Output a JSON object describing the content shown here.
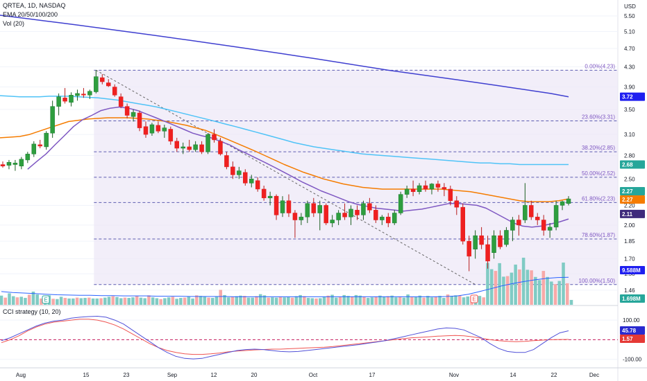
{
  "header": {
    "symbol_line": "QRTEA, 1D, NASDAQ",
    "ema_line": "EMA 20/50/100/200",
    "vol_line": "Vol (20)",
    "cci_line": "CCI strategy (10, 20)"
  },
  "axis": {
    "currency": "USD",
    "price_ticks": [
      "5.50",
      "5.10",
      "4.70",
      "4.30",
      "3.90",
      "3.50",
      "3.10",
      "2.80",
      "2.50",
      "2.20",
      "2.00",
      "1.85",
      "1.70",
      "1.58",
      "1.46"
    ],
    "cci_ticks": [
      "100.00",
      "-100.00"
    ],
    "x_labels": [
      "Aug",
      "15",
      "23",
      "Sep",
      "12",
      "20",
      "Oct",
      "17",
      "Nov",
      "14",
      "22",
      "Dec"
    ]
  },
  "badges": {
    "ema200": {
      "text": "3.72",
      "color": "#1e1ef0"
    },
    "ema100": {
      "text": "2.68",
      "color": "#26a69a"
    },
    "price_green": {
      "text": "2.27",
      "color": "#26a69a"
    },
    "ema50": {
      "text": "2.27",
      "color": "#f57c00"
    },
    "ema20": {
      "text": "2.11",
      "color": "#3f2a7c"
    },
    "vol_ma": {
      "text": "9.588M",
      "color": "#1e1ef0"
    },
    "vol": {
      "text": "1.698M",
      "color": "#26a69a"
    },
    "cci": {
      "text": "45.78",
      "color": "#2a2ad0"
    },
    "cci_sig": {
      "text": "1.57",
      "color": "#e53935"
    }
  },
  "chart_data": {
    "type": "candlestick",
    "colors": {
      "up": "#26a69a",
      "down": "#ef5350",
      "ema20": "#7e57c2",
      "ema50": "#f57c00",
      "ema100": "#4fc3f7",
      "ema200": "#3f3fd0",
      "fib": "#5b5bb0",
      "fib_fill": "#ede7f6"
    },
    "fib_levels": [
      {
        "label": "0.00%(4.23)",
        "value": 4.23
      },
      {
        "label": "23.60%(3.31)",
        "value": 3.31
      },
      {
        "label": "38.20%(2.85)",
        "value": 2.85
      },
      {
        "label": "50.00%(2.52)",
        "value": 2.52
      },
      {
        "label": "61.80%(2.23)",
        "value": 2.23
      },
      {
        "label": "78.60%(1.87)",
        "value": 1.87
      },
      {
        "label": "100.00%(1.50)",
        "value": 1.5
      }
    ],
    "candles": [
      {
        "o": 2.68,
        "h": 2.72,
        "l": 2.64,
        "c": 2.66
      },
      {
        "o": 2.67,
        "h": 2.74,
        "l": 2.62,
        "c": 2.71
      },
      {
        "o": 2.68,
        "h": 2.74,
        "l": 2.6,
        "c": 2.7
      },
      {
        "o": 2.66,
        "h": 2.78,
        "l": 2.62,
        "c": 2.75
      },
      {
        "o": 2.74,
        "h": 2.85,
        "l": 2.7,
        "c": 2.82
      },
      {
        "o": 2.82,
        "h": 3.0,
        "l": 2.78,
        "c": 2.96
      },
      {
        "o": 2.95,
        "h": 3.02,
        "l": 2.9,
        "c": 2.93
      },
      {
        "o": 2.92,
        "h": 3.15,
        "l": 2.88,
        "c": 3.12
      },
      {
        "o": 3.12,
        "h": 3.65,
        "l": 3.05,
        "c": 3.55
      },
      {
        "o": 3.55,
        "h": 3.78,
        "l": 3.4,
        "c": 3.72
      },
      {
        "o": 3.7,
        "h": 3.88,
        "l": 3.6,
        "c": 3.64
      },
      {
        "o": 3.62,
        "h": 3.8,
        "l": 3.55,
        "c": 3.75
      },
      {
        "o": 3.74,
        "h": 3.85,
        "l": 3.65,
        "c": 3.78
      },
      {
        "o": 3.77,
        "h": 3.88,
        "l": 3.7,
        "c": 3.75
      },
      {
        "o": 3.75,
        "h": 3.85,
        "l": 3.68,
        "c": 3.82
      },
      {
        "o": 3.81,
        "h": 4.23,
        "l": 3.78,
        "c": 4.1
      },
      {
        "o": 4.08,
        "h": 4.15,
        "l": 3.95,
        "c": 4.0
      },
      {
        "o": 3.98,
        "h": 4.05,
        "l": 3.9,
        "c": 3.92
      },
      {
        "o": 3.9,
        "h": 3.95,
        "l": 3.72,
        "c": 3.75
      },
      {
        "o": 3.72,
        "h": 3.78,
        "l": 3.52,
        "c": 3.55
      },
      {
        "o": 3.55,
        "h": 3.6,
        "l": 3.35,
        "c": 3.4
      },
      {
        "o": 3.38,
        "h": 3.5,
        "l": 3.3,
        "c": 3.45
      },
      {
        "o": 3.44,
        "h": 3.48,
        "l": 3.15,
        "c": 3.2
      },
      {
        "o": 3.22,
        "h": 3.3,
        "l": 3.05,
        "c": 3.1
      },
      {
        "o": 3.12,
        "h": 3.28,
        "l": 3.08,
        "c": 3.25
      },
      {
        "o": 3.24,
        "h": 3.3,
        "l": 3.12,
        "c": 3.15
      },
      {
        "o": 3.15,
        "h": 3.25,
        "l": 3.05,
        "c": 3.2
      },
      {
        "o": 3.18,
        "h": 3.22,
        "l": 2.95,
        "c": 3.0
      },
      {
        "o": 3.0,
        "h": 3.05,
        "l": 2.85,
        "c": 2.9
      },
      {
        "o": 2.9,
        "h": 2.98,
        "l": 2.82,
        "c": 2.92
      },
      {
        "o": 2.92,
        "h": 3.02,
        "l": 2.85,
        "c": 2.88
      },
      {
        "o": 2.88,
        "h": 3.0,
        "l": 2.85,
        "c": 2.95
      },
      {
        "o": 2.95,
        "h": 3.0,
        "l": 2.82,
        "c": 2.85
      },
      {
        "o": 2.85,
        "h": 3.12,
        "l": 2.82,
        "c": 3.1
      },
      {
        "o": 3.1,
        "h": 3.18,
        "l": 2.98,
        "c": 3.02
      },
      {
        "o": 3.0,
        "h": 3.05,
        "l": 2.8,
        "c": 2.82
      },
      {
        "o": 2.8,
        "h": 2.85,
        "l": 2.62,
        "c": 2.65
      },
      {
        "o": 2.65,
        "h": 2.72,
        "l": 2.5,
        "c": 2.55
      },
      {
        "o": 2.55,
        "h": 2.65,
        "l": 2.5,
        "c": 2.6
      },
      {
        "o": 2.58,
        "h": 2.62,
        "l": 2.42,
        "c": 2.45
      },
      {
        "o": 2.45,
        "h": 2.55,
        "l": 2.4,
        "c": 2.5
      },
      {
        "o": 2.48,
        "h": 2.52,
        "l": 2.35,
        "c": 2.38
      },
      {
        "o": 2.38,
        "h": 2.42,
        "l": 2.25,
        "c": 2.28
      },
      {
        "o": 2.28,
        "h": 2.35,
        "l": 2.2,
        "c": 2.3
      },
      {
        "o": 2.3,
        "h": 2.32,
        "l": 2.05,
        "c": 2.1
      },
      {
        "o": 2.12,
        "h": 2.3,
        "l": 2.08,
        "c": 2.25
      },
      {
        "o": 2.25,
        "h": 2.32,
        "l": 2.08,
        "c": 2.12
      },
      {
        "o": 2.12,
        "h": 2.15,
        "l": 1.88,
        "c": 2.05
      },
      {
        "o": 2.05,
        "h": 2.12,
        "l": 2.0,
        "c": 2.08
      },
      {
        "o": 2.08,
        "h": 2.25,
        "l": 2.02,
        "c": 2.22
      },
      {
        "o": 2.22,
        "h": 2.28,
        "l": 2.08,
        "c": 2.12
      },
      {
        "o": 2.12,
        "h": 2.25,
        "l": 1.95,
        "c": 2.2
      },
      {
        "o": 2.2,
        "h": 2.22,
        "l": 2.0,
        "c": 2.02
      },
      {
        "o": 2.02,
        "h": 2.1,
        "l": 1.98,
        "c": 2.05
      },
      {
        "o": 2.05,
        "h": 2.15,
        "l": 2.0,
        "c": 2.12
      },
      {
        "o": 2.12,
        "h": 2.22,
        "l": 2.05,
        "c": 2.08
      },
      {
        "o": 2.08,
        "h": 2.2,
        "l": 2.0,
        "c": 2.16
      },
      {
        "o": 2.15,
        "h": 2.2,
        "l": 2.05,
        "c": 2.1
      },
      {
        "o": 2.1,
        "h": 2.25,
        "l": 2.05,
        "c": 2.22
      },
      {
        "o": 2.22,
        "h": 2.28,
        "l": 2.12,
        "c": 2.15
      },
      {
        "o": 2.15,
        "h": 2.2,
        "l": 2.02,
        "c": 2.05
      },
      {
        "o": 2.05,
        "h": 2.1,
        "l": 2.0,
        "c": 2.08
      },
      {
        "o": 2.08,
        "h": 2.12,
        "l": 1.98,
        "c": 2.02
      },
      {
        "o": 2.02,
        "h": 2.15,
        "l": 2.0,
        "c": 2.12
      },
      {
        "o": 2.12,
        "h": 2.35,
        "l": 2.1,
        "c": 2.32
      },
      {
        "o": 2.32,
        "h": 2.42,
        "l": 2.28,
        "c": 2.38
      },
      {
        "o": 2.38,
        "h": 2.48,
        "l": 2.3,
        "c": 2.35
      },
      {
        "o": 2.35,
        "h": 2.45,
        "l": 2.32,
        "c": 2.42
      },
      {
        "o": 2.42,
        "h": 2.48,
        "l": 2.35,
        "c": 2.38
      },
      {
        "o": 2.38,
        "h": 2.45,
        "l": 2.32,
        "c": 2.44
      },
      {
        "o": 2.44,
        "h": 2.48,
        "l": 2.35,
        "c": 2.4
      },
      {
        "o": 2.4,
        "h": 2.45,
        "l": 2.3,
        "c": 2.38
      },
      {
        "o": 2.38,
        "h": 2.42,
        "l": 2.2,
        "c": 2.25
      },
      {
        "o": 2.25,
        "h": 2.3,
        "l": 2.1,
        "c": 2.18
      },
      {
        "o": 2.18,
        "h": 2.22,
        "l": 1.82,
        "c": 1.85
      },
      {
        "o": 1.85,
        "h": 1.9,
        "l": 1.6,
        "c": 1.72
      },
      {
        "o": 1.78,
        "h": 1.95,
        "l": 1.7,
        "c": 1.9
      },
      {
        "o": 1.9,
        "h": 1.98,
        "l": 1.78,
        "c": 1.82
      },
      {
        "o": 1.82,
        "h": 1.9,
        "l": 1.62,
        "c": 1.68
      },
      {
        "o": 1.75,
        "h": 1.95,
        "l": 1.7,
        "c": 1.9
      },
      {
        "o": 1.9,
        "h": 1.95,
        "l": 1.78,
        "c": 1.8
      },
      {
        "o": 1.82,
        "h": 1.98,
        "l": 1.8,
        "c": 1.95
      },
      {
        "o": 1.95,
        "h": 2.08,
        "l": 1.85,
        "c": 2.05
      },
      {
        "o": 2.05,
        "h": 2.1,
        "l": 1.9,
        "c": 2.0
      },
      {
        "o": 2.05,
        "h": 2.45,
        "l": 2.02,
        "c": 2.2
      },
      {
        "o": 2.2,
        "h": 2.25,
        "l": 2.05,
        "c": 2.08
      },
      {
        "o": 2.08,
        "h": 2.12,
        "l": 2.0,
        "c": 2.05
      },
      {
        "o": 2.05,
        "h": 2.1,
        "l": 1.9,
        "c": 1.95
      },
      {
        "o": 1.95,
        "h": 2.02,
        "l": 1.88,
        "c": 1.98
      },
      {
        "o": 1.98,
        "h": 2.25,
        "l": 1.95,
        "c": 2.2
      },
      {
        "o": 2.2,
        "h": 2.25,
        "l": 2.15,
        "c": 2.24
      },
      {
        "o": 2.22,
        "h": 2.3,
        "l": 2.2,
        "c": 2.27
      }
    ],
    "ema20": [
      2.62,
      2.72,
      2.82,
      2.95,
      3.08,
      3.22,
      3.33,
      3.4,
      3.48,
      3.52,
      3.54,
      3.52,
      3.48,
      3.42,
      3.36,
      3.3,
      3.24,
      3.18,
      3.12,
      3.08,
      3.05,
      3.0,
      2.95,
      2.88,
      2.82,
      2.76,
      2.7,
      2.64,
      2.58,
      2.52,
      2.46,
      2.41,
      2.36,
      2.32,
      2.28,
      2.24,
      2.21,
      2.19,
      2.17,
      2.16,
      2.15,
      2.14,
      2.15,
      2.16,
      2.18,
      2.2,
      2.22,
      2.22,
      2.21,
      2.2,
      2.17,
      2.12,
      2.07,
      2.02,
      1.99,
      1.98,
      1.99,
      2.01,
      2.03,
      2.06
    ],
    "ema50": [
      3.05,
      3.05,
      3.06,
      3.07,
      3.1,
      3.15,
      3.2,
      3.25,
      3.3,
      3.32,
      3.34,
      3.35,
      3.36,
      3.36,
      3.36,
      3.35,
      3.34,
      3.32,
      3.3,
      3.27,
      3.24,
      3.2,
      3.16,
      3.1,
      3.04,
      2.98,
      2.92,
      2.86,
      2.8,
      2.74,
      2.68,
      2.63,
      2.58,
      2.54,
      2.5,
      2.47,
      2.44,
      2.42,
      2.4,
      2.39,
      2.38,
      2.38,
      2.38,
      2.38,
      2.38,
      2.38,
      2.38,
      2.37,
      2.36,
      2.35,
      2.33,
      2.31,
      2.29,
      2.27,
      2.25,
      2.24,
      2.24,
      2.24,
      2.25,
      2.27
    ],
    "ema100": [
      3.75,
      3.74,
      3.73,
      3.72,
      3.72,
      3.72,
      3.73,
      3.73,
      3.73,
      3.72,
      3.71,
      3.7,
      3.68,
      3.66,
      3.63,
      3.6,
      3.57,
      3.54,
      3.5,
      3.46,
      3.42,
      3.38,
      3.34,
      3.3,
      3.26,
      3.22,
      3.18,
      3.14,
      3.1,
      3.06,
      3.02,
      2.98,
      2.95,
      2.92,
      2.9,
      2.88,
      2.86,
      2.84,
      2.82,
      2.81,
      2.8,
      2.79,
      2.78,
      2.77,
      2.76,
      2.75,
      2.74,
      2.73,
      2.72,
      2.71,
      2.7,
      2.7,
      2.69,
      2.69,
      2.68,
      2.68,
      2.68,
      2.68,
      2.68,
      2.68
    ],
    "ema200": [
      5.55,
      5.49,
      5.43,
      5.37,
      5.31,
      5.25,
      5.19,
      5.13,
      5.07,
      5.01,
      4.95,
      4.89,
      4.83,
      4.77,
      4.71,
      4.65,
      4.59,
      4.53,
      4.47,
      4.41,
      4.35,
      4.29,
      4.23,
      4.18,
      4.13,
      4.08,
      4.03,
      3.98,
      3.93,
      3.88,
      3.83,
      3.78,
      3.72
    ],
    "volume": [
      3.2,
      2.5,
      4.0,
      3.0,
      2.6,
      2.8,
      2.4,
      3.5,
      4.6,
      3.6,
      2.2,
      3.1,
      3.3,
      2.1,
      2.0,
      2.8,
      2.4,
      2.2,
      2.2,
      2.5,
      2.3,
      2.4,
      2.5,
      2.2,
      2.2,
      2.3,
      2.5,
      2.8,
      3.0,
      2.7,
      2.3,
      2.5,
      2.4,
      2.6,
      3.1,
      2.5,
      2.3,
      3.3,
      2.6,
      2.3,
      2.0,
      2.3,
      2.6,
      2.8,
      2.1,
      2.4,
      2.5,
      3.0,
      2.2,
      3.3,
      3.1,
      3.0,
      2.5,
      2.4,
      3.0,
      5.2,
      3.4,
      2.6,
      2.8,
      3.0,
      3.2,
      3.1,
      2.5,
      2.5,
      3.0,
      3.7,
      3.3,
      2.5,
      2.6,
      2.5,
      2.8,
      2.6,
      2.7,
      2.5,
      3.0,
      3.4,
      3.0,
      2.4,
      2.3,
      2.2,
      2.3,
      2.8,
      3.2,
      3.5,
      2.5,
      2.7,
      3.4,
      3.1,
      2.9,
      3.4,
      3.2,
      2.8,
      2.4,
      2.6,
      2.8,
      3.2,
      2.8,
      3.0,
      3.2,
      2.6,
      2.8,
      2.5,
      3.6,
      2.7,
      2.7,
      3.2,
      2.5,
      3.1,
      2.6,
      2.8,
      3.1,
      2.4,
      3.6,
      3.0,
      3.3,
      3.2,
      2.6,
      2.9,
      3.0,
      2.7,
      3.1,
      2.6,
      14.6,
      12.4,
      11.8,
      14.5,
      9.8,
      10.0,
      11.2,
      14.0,
      12.3,
      16.4,
      12.2,
      12.0,
      9.7,
      8.6,
      11.8,
      9.7,
      8.1,
      7.2,
      8.3,
      14.7,
      7.5,
      1.7
    ],
    "volume_ma": [
      4.6,
      4.3,
      4.1,
      3.9,
      3.7,
      3.5,
      3.4,
      3.3,
      3.3,
      3.2,
      3.2,
      3.1,
      3.1,
      3.1,
      3.0,
      3.0,
      3.0,
      2.9,
      2.9,
      2.9,
      2.9,
      2.8,
      2.8,
      2.8,
      2.8,
      2.8,
      2.8,
      2.8,
      2.8,
      2.8,
      2.8,
      2.8,
      2.8,
      2.8,
      2.8,
      2.8,
      2.8,
      2.8,
      2.8,
      2.8,
      2.9,
      3.1,
      3.7,
      4.6,
      5.6,
      6.6,
      7.4,
      8.1,
      8.7,
      9.2,
      9.5,
      9.6
    ],
    "cci": [
      -5,
      10,
      30,
      50,
      70,
      85,
      95,
      100,
      110,
      115,
      118,
      120,
      115,
      100,
      80,
      50,
      20,
      -10,
      -40,
      -65,
      -85,
      -95,
      -98,
      -95,
      -85,
      -75,
      -65,
      -55,
      -50,
      -48,
      -50,
      -55,
      -60,
      -62,
      -60,
      -55,
      -50,
      -45,
      -40,
      -35,
      -30,
      -25,
      -18,
      -12,
      -5,
      5,
      15,
      25,
      35,
      45,
      55,
      60,
      58,
      50,
      30,
      10,
      -20,
      -45,
      -60,
      -65,
      -65,
      -50,
      -20,
      10,
      35,
      45.78
    ],
    "cci_signal": [
      -15,
      0,
      20,
      45,
      65,
      80,
      90,
      95,
      100,
      105,
      105,
      100,
      90,
      75,
      55,
      30,
      5,
      -20,
      -40,
      -55,
      -65,
      -72,
      -75,
      -75,
      -72,
      -68,
      -62,
      -58,
      -55,
      -52,
      -50,
      -48,
      -48,
      -46,
      -44,
      -42,
      -40,
      -38,
      -35,
      -30,
      -25,
      -20,
      -15,
      -10,
      -5,
      0,
      5,
      10,
      12,
      15,
      18,
      20,
      22,
      20,
      15,
      8,
      0,
      -5,
      -8,
      -10,
      -8,
      -5,
      -2,
      0,
      1,
      1.57
    ],
    "price_axis": {
      "type": "log",
      "range": [
        1.36,
        5.9
      ]
    },
    "cci_axis": {
      "range": [
        -140,
        150
      ]
    }
  }
}
